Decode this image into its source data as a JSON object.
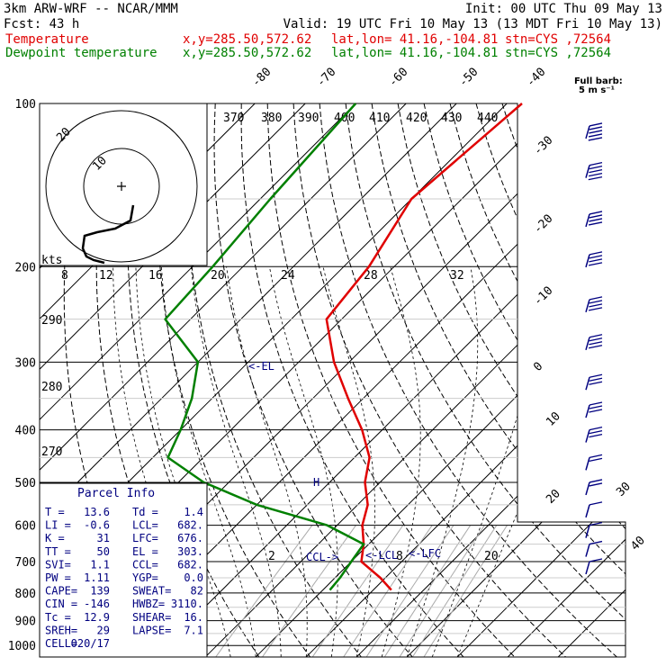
{
  "header": {
    "model": "3km ARW-WRF -- NCAR/MMM",
    "init": "Init: 00 UTC Thu 09 May 13",
    "fcst": "Fcst:    43 h",
    "valid": "Valid: 19 UTC Fri 10 May 13 (13 MDT Fri 10 May 13)",
    "temp_label": "Temperature",
    "dew_label": "Dewpoint temperature",
    "xy": "x,y=285.50,572.62",
    "latlon": "lat,lon= 41.16,-104.81",
    "stn": "stn=CYS ,72564"
  },
  "colors": {
    "temperature": "#e00000",
    "dewpoint": "#008000",
    "info": "#000080",
    "grid": "#000000"
  },
  "barb_legend": {
    "title": "Full barb:",
    "value": "5 m s⁻¹"
  },
  "hodograph": {
    "unit": "kts",
    "ring_labels": [
      "20",
      "10"
    ]
  },
  "annotations": {
    "el": "<-EL",
    "lcl": "<-LCL",
    "lfc": "<-LFC",
    "ccl": "CCL->",
    "h": "H"
  },
  "parcel_info": {
    "title": "Parcel Info",
    "rows": [
      [
        "T  =",
        "13.6",
        "Td =",
        "1.4"
      ],
      [
        "LI =",
        "-0.6",
        "LCL=",
        "682."
      ],
      [
        "K  =",
        "31",
        "LFC=",
        "676."
      ],
      [
        "TT =",
        "50",
        "EL =",
        "303."
      ],
      [
        "SVI=",
        "1.1",
        "CCL=",
        "682."
      ],
      [
        "PW =",
        "1.11",
        "YGP=",
        "0.0"
      ],
      [
        "CAPE=",
        "139",
        "SWEAT=",
        "82"
      ],
      [
        "CIN =",
        "-146",
        "HWBZ=",
        "3110."
      ],
      [
        "Tc  =",
        "12.9",
        "SHEAR=",
        "16."
      ],
      [
        "SREH=",
        "29",
        "LAPSE=",
        "7.1"
      ],
      [
        "CELL=",
        "020/17",
        "",
        ""
      ]
    ]
  },
  "chart_data": {
    "type": "line",
    "chart_kind": "skew-T log-p sounding",
    "pressure_levels": [
      100,
      200,
      300,
      400,
      500,
      600,
      700,
      800,
      900,
      1000
    ],
    "pressure_tick_labels": [
      "100",
      "200",
      "300",
      "400",
      "500",
      "600",
      "700",
      "800",
      "900",
      "1000"
    ],
    "isotherm_labels": [
      "-80",
      "-70",
      "-60",
      "-50",
      "-40",
      "-30",
      "-20",
      "-10",
      "0",
      "10",
      "20",
      "30",
      "40"
    ],
    "theta_labels_top": [
      "370",
      "380",
      "390",
      "400",
      "410",
      "420",
      "430",
      "440"
    ],
    "theta_labels_left": [
      "290",
      "280",
      "270"
    ],
    "mixing_ratio_labels": [
      "8",
      "12",
      "16",
      "20",
      "24",
      "28",
      "32"
    ],
    "mixing_ratio_labels_low": [
      "2",
      "8",
      "20"
    ],
    "series": [
      {
        "name": "Temperature",
        "points": [
          {
            "p": 100,
            "t": -57
          },
          {
            "p": 150,
            "t": -60
          },
          {
            "p": 200,
            "t": -55
          },
          {
            "p": 250,
            "t": -53
          },
          {
            "p": 300,
            "t": -43
          },
          {
            "p": 350,
            "t": -33
          },
          {
            "p": 400,
            "t": -24
          },
          {
            "p": 450,
            "t": -17
          },
          {
            "p": 500,
            "t": -13
          },
          {
            "p": 550,
            "t": -8
          },
          {
            "p": 600,
            "t": -5
          },
          {
            "p": 650,
            "t": -1
          },
          {
            "p": 700,
            "t": 2
          },
          {
            "p": 750,
            "t": 9
          },
          {
            "p": 790,
            "t": 13.6
          }
        ]
      },
      {
        "name": "Dewpoint temperature",
        "points": [
          {
            "p": 100,
            "t": -90
          },
          {
            "p": 150,
            "t": -88
          },
          {
            "p": 200,
            "t": -86
          },
          {
            "p": 250,
            "t": -85
          },
          {
            "p": 300,
            "t": -70
          },
          {
            "p": 350,
            "t": -64
          },
          {
            "p": 400,
            "t": -60
          },
          {
            "p": 450,
            "t": -57
          },
          {
            "p": 500,
            "t": -45
          },
          {
            "p": 550,
            "t": -30
          },
          {
            "p": 600,
            "t": -12
          },
          {
            "p": 650,
            "t": -1
          },
          {
            "p": 700,
            "t": 0
          },
          {
            "p": 750,
            "t": 1
          },
          {
            "p": 790,
            "t": 1.4
          }
        ]
      }
    ],
    "wind_barbs": [
      {
        "p": 110,
        "kt": 45
      },
      {
        "p": 130,
        "kt": 45
      },
      {
        "p": 160,
        "kt": 40
      },
      {
        "p": 190,
        "kt": 40
      },
      {
        "p": 230,
        "kt": 35
      },
      {
        "p": 270,
        "kt": 35
      },
      {
        "p": 320,
        "kt": 30
      },
      {
        "p": 360,
        "kt": 25
      },
      {
        "p": 400,
        "kt": 25
      },
      {
        "p": 450,
        "kt": 20
      },
      {
        "p": 500,
        "kt": 15
      },
      {
        "p": 550,
        "kt": 10
      },
      {
        "p": 600,
        "kt": 5
      },
      {
        "p": 650,
        "kt": 5
      },
      {
        "p": 700,
        "kt": 5
      }
    ]
  }
}
